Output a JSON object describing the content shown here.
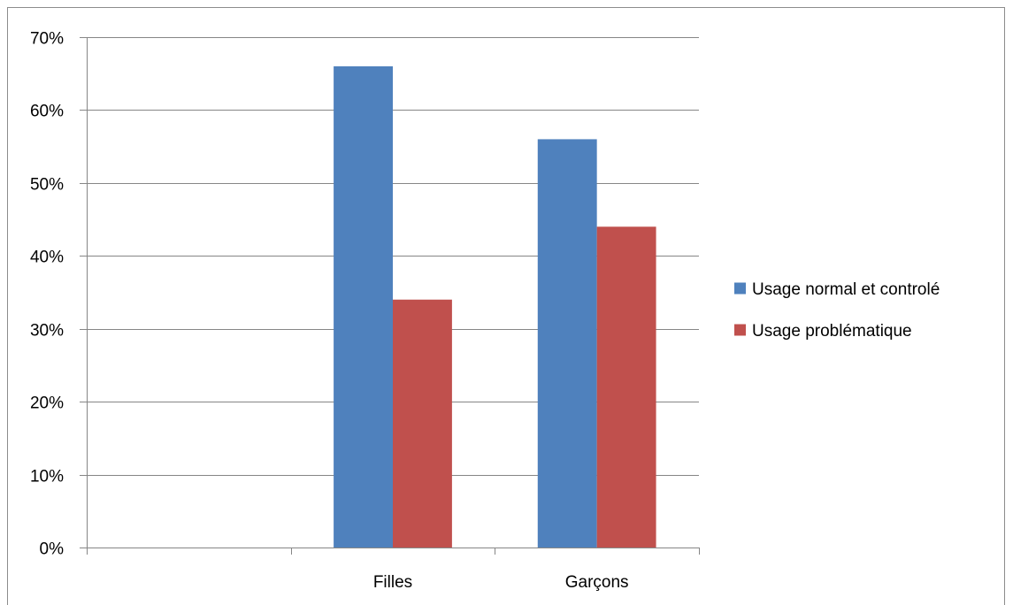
{
  "chart_data": {
    "type": "bar",
    "title": "",
    "xlabel": "",
    "ylabel": "",
    "categories": [
      "",
      "Filles",
      "Garçons"
    ],
    "series": [
      {
        "name": "Usage normal et controlé",
        "color": "#4f81bd",
        "values": [
          null,
          66,
          56
        ]
      },
      {
        "name": "Usage problématique",
        "color": "#c0504d",
        "values": [
          null,
          34,
          44
        ]
      }
    ],
    "ylim": [
      0,
      70
    ],
    "yticks": [
      0,
      10,
      20,
      30,
      40,
      50,
      60,
      70
    ],
    "ytick_labels": [
      "0%",
      "10%",
      "20%",
      "30%",
      "40%",
      "50%",
      "60%",
      "70%"
    ],
    "grid": true,
    "legend_position": "right",
    "gridline_color": "#868686",
    "axis_color": "#868686"
  }
}
